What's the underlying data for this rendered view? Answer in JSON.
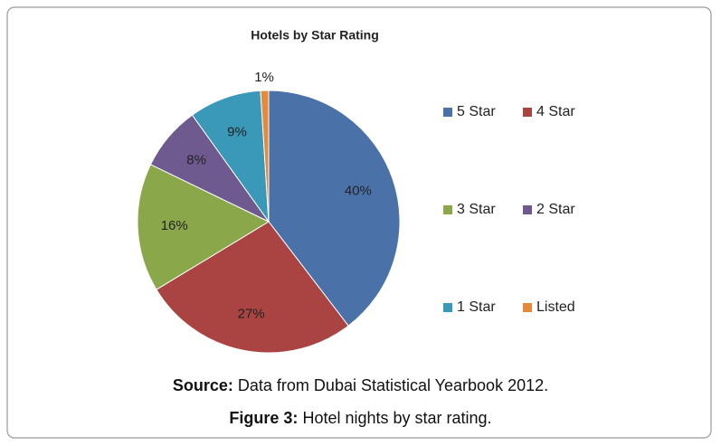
{
  "chart_data": {
    "type": "pie",
    "title": "Hotels by Star Rating",
    "categories": [
      "5 Star",
      "4 Star",
      "3 Star",
      "2 Star",
      "1 Star",
      "Listed"
    ],
    "values": [
      40,
      27,
      16,
      8,
      9,
      1
    ],
    "value_labels": [
      "40%",
      "27%",
      "16%",
      "8%",
      "9%",
      "1%"
    ],
    "colors": [
      "#4a72a8",
      "#a94442",
      "#8aa84a",
      "#6e5a8e",
      "#3a98b8",
      "#e48a3a"
    ],
    "legend": "right"
  },
  "caption": {
    "source_label": "Source:",
    "source_text": "Data from Dubai Statistical Yearbook 2012.",
    "figure_label": "Figure 3:",
    "figure_text": "Hotel nights by star rating."
  }
}
